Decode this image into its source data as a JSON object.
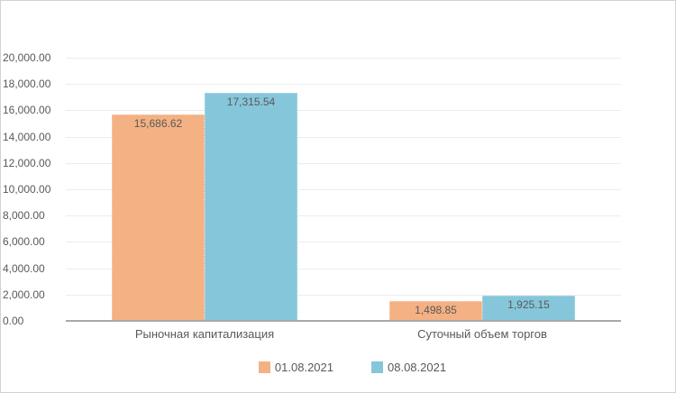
{
  "chart_data": {
    "type": "bar",
    "title": "",
    "categories": [
      "Рыночная капитализация",
      "Суточный объем торгов"
    ],
    "series": [
      {
        "name": "01.08.2021",
        "color": "#F4B183",
        "values": [
          15686.62,
          1498.85
        ],
        "labels": [
          "15,686.62",
          "1,498.85"
        ]
      },
      {
        "name": "08.08.2021",
        "color": "#85C6DA",
        "values": [
          17315.54,
          1925.15
        ],
        "labels": [
          "17,315.54",
          "1,925.15"
        ]
      }
    ],
    "y_axis": {
      "min": 0,
      "max": 20000,
      "step": 2000,
      "tick_labels": [
        "0.00",
        "2,000.00",
        "4,000.00",
        "6,000.00",
        "8,000.00",
        "10,000.00",
        "12,000.00",
        "14,000.00",
        "16,000.00",
        "18,000.00",
        "20,000.00"
      ]
    },
    "grid": true,
    "legend_position": "bottom",
    "data_labels": "inside-end"
  },
  "colors": {
    "series_1": "#F4B183",
    "series_2": "#85C6DA",
    "text": "#595959",
    "gridline": "#ececec",
    "axis_line": "#a9a9a9",
    "frame_border": "#d2d2d2"
  }
}
